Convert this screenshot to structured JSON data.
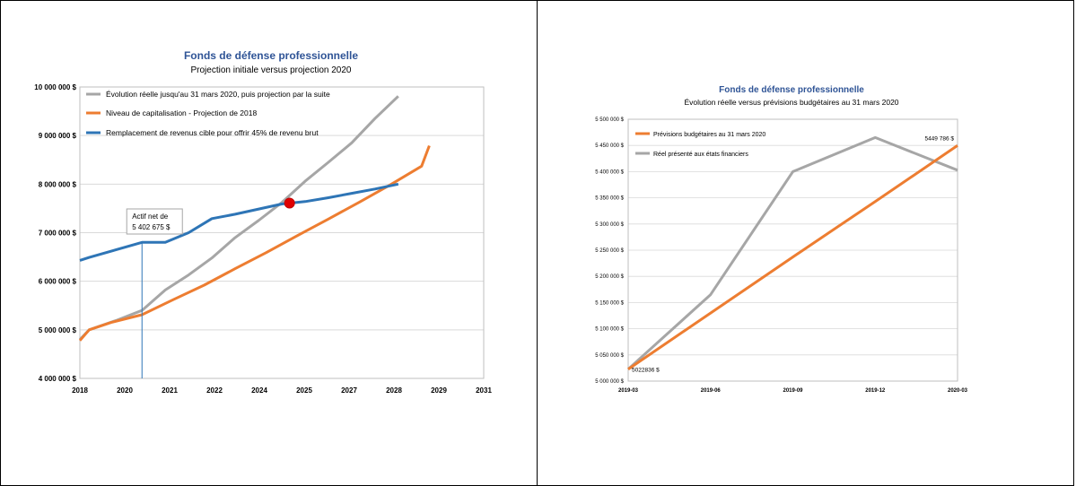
{
  "colors": {
    "gray": "#a6a6a6",
    "orange": "#ed7d31",
    "blue": "#2e75b6",
    "marker": "#e00000",
    "title": "#2f5496",
    "grid": "#d9d9d9"
  },
  "chart_data": [
    {
      "type": "line",
      "title": "Fonds de défense professionnelle",
      "subtitle": "Projection initiale versus projection 2020",
      "xlim": [
        2018,
        2031
      ],
      "ylim": [
        4000000,
        10000000
      ],
      "x_ticks": [
        "2018",
        "2020",
        "2021",
        "2022",
        "2024",
        "2025",
        "2027",
        "2028",
        "2029",
        "2031"
      ],
      "y_ticks": [
        {
          "value": 4000000,
          "label": "4 000 000 $"
        },
        {
          "value": 5000000,
          "label": "5 000 000 $"
        },
        {
          "value": 6000000,
          "label": "6 000 000 $"
        },
        {
          "value": 7000000,
          "label": "7 000 000 $"
        },
        {
          "value": 8000000,
          "label": "8 000 000 $"
        },
        {
          "value": 9000000,
          "label": "9 000 000 $"
        },
        {
          "value": 10000000,
          "label": "10 000 000 $"
        }
      ],
      "grid": true,
      "legend_position": "top-left",
      "series": [
        {
          "name": "Évolution réelle jusqu'au 31 mars 2020, puis projection par la suite",
          "color": "gray",
          "points": [
            [
              2018.0,
              4800000
            ],
            [
              2018.3,
              5000000
            ],
            [
              2019.2,
              5200000
            ],
            [
              2020.0,
              5400000
            ],
            [
              2020.75,
              5820000
            ],
            [
              2021.5,
              6130000
            ],
            [
              2022.25,
              6480000
            ],
            [
              2023.0,
              6900000
            ],
            [
              2023.75,
              7250000
            ],
            [
              2024.5,
              7620000
            ],
            [
              2025.25,
              8060000
            ],
            [
              2026.0,
              8450000
            ],
            [
              2026.75,
              8850000
            ],
            [
              2027.5,
              9350000
            ],
            [
              2028.25,
              9810000
            ]
          ]
        },
        {
          "name": "Niveau de capitalisation - Projection de 2018",
          "color": "orange",
          "points": [
            [
              2018.0,
              4780000
            ],
            [
              2018.3,
              5000000
            ],
            [
              2019.0,
              5150000
            ],
            [
              2020.0,
              5310000
            ],
            [
              2021.0,
              5620000
            ],
            [
              2022.0,
              5920000
            ],
            [
              2023.0,
              6260000
            ],
            [
              2024.0,
              6590000
            ],
            [
              2025.0,
              6940000
            ],
            [
              2026.0,
              7280000
            ],
            [
              2027.0,
              7630000
            ],
            [
              2028.0,
              7990000
            ],
            [
              2029.0,
              8370000
            ],
            [
              2029.25,
              8790000
            ]
          ]
        },
        {
          "name": "Remplacement de revenus cible pour offrir 45% de revenu brut",
          "color": "blue",
          "points": [
            [
              2018.0,
              6430000
            ],
            [
              2018.3,
              6490000
            ],
            [
              2020.0,
              6800000
            ],
            [
              2020.75,
              6800000
            ],
            [
              2021.5,
              7000000
            ],
            [
              2022.25,
              7290000
            ],
            [
              2023.0,
              7380000
            ],
            [
              2024.5,
              7590000
            ],
            [
              2025.25,
              7640000
            ],
            [
              2026.0,
              7720000
            ],
            [
              2026.75,
              7810000
            ],
            [
              2027.5,
              7900000
            ],
            [
              2028.25,
              8000000
            ]
          ]
        }
      ],
      "marker": {
        "x": 2024.75,
        "y": 7610000
      },
      "annotation": {
        "line1": "Actif net de",
        "line2": "5 402 675 $",
        "x": 2020.0
      }
    },
    {
      "type": "line",
      "title": "Fonds de défense professionnelle",
      "subtitle": "Évolution réelle versus prévisions budgétaires au 31 mars 2020",
      "categories": [
        "2019-03",
        "2019-06",
        "2019-09",
        "2019-12",
        "2020-03"
      ],
      "ylim": [
        5000000,
        5500000
      ],
      "y_ticks": [
        {
          "value": 5000000,
          "label": "5 000 000 $"
        },
        {
          "value": 5050000,
          "label": "5 050 000 $"
        },
        {
          "value": 5100000,
          "label": "5 100 000 $"
        },
        {
          "value": 5150000,
          "label": "5 150 000 $"
        },
        {
          "value": 5200000,
          "label": "5 200 000 $"
        },
        {
          "value": 5250000,
          "label": "5 250 000 $"
        },
        {
          "value": 5300000,
          "label": "5 300 000 $"
        },
        {
          "value": 5350000,
          "label": "5 350 000 $"
        },
        {
          "value": 5400000,
          "label": "5 400 000 $"
        },
        {
          "value": 5450000,
          "label": "5 450 000 $"
        },
        {
          "value": 5500000,
          "label": "5 500 000 $"
        }
      ],
      "grid": true,
      "legend_position": "top-left",
      "series": [
        {
          "name": "Prévisions budgétaires au 31 mars 2020",
          "color": "orange",
          "values": [
            5022836,
            5130000,
            5237000,
            5343000,
            5449786
          ]
        },
        {
          "name": "Réel présenté aux états financiers",
          "color": "gray",
          "values": [
            5022836,
            5165000,
            5400000,
            5465000,
            5402675
          ]
        }
      ],
      "data_labels": [
        {
          "text": "5022836 $",
          "index": 0
        },
        {
          "text": "5449 786 $",
          "index": 4
        }
      ]
    }
  ]
}
